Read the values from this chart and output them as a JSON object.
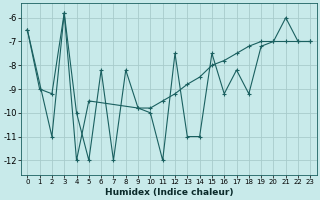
{
  "xlabel": "Humidex (Indice chaleur)",
  "bg_color": "#c8eaea",
  "grid_color": "#a8cccc",
  "line_color": "#1a6060",
  "xlim": [
    -0.5,
    23.5
  ],
  "ylim": [
    -12.6,
    -5.4
  ],
  "yticks": [
    -12,
    -11,
    -10,
    -9,
    -8,
    -7,
    -6
  ],
  "xticks": [
    0,
    1,
    2,
    3,
    4,
    5,
    6,
    7,
    8,
    9,
    10,
    11,
    12,
    13,
    14,
    15,
    16,
    17,
    18,
    19,
    20,
    21,
    22,
    23
  ],
  "curve1_x": [
    0,
    1,
    2,
    3,
    4,
    5,
    6,
    7,
    8,
    9,
    10,
    11,
    12,
    13,
    14,
    15,
    16,
    17,
    18,
    19,
    20,
    21,
    22,
    23
  ],
  "curve1_y": [
    -6.5,
    -9.0,
    -9.2,
    -5.8,
    -10.0,
    -12.0,
    -8.2,
    -12.0,
    -8.2,
    -9.8,
    -10.0,
    -12.0,
    -7.5,
    -11.0,
    -11.0,
    -7.5,
    -9.2,
    -8.2,
    -9.2,
    -7.2,
    -7.0,
    -6.0,
    -7.0,
    -7.0
  ],
  "curve2_x": [
    0,
    2,
    3,
    4,
    5,
    9,
    10,
    11,
    12,
    13,
    14,
    15,
    16,
    17,
    18,
    19,
    20,
    21,
    22,
    23
  ],
  "curve2_y": [
    -6.5,
    -11.0,
    -5.8,
    -12.0,
    -9.5,
    -9.8,
    -9.8,
    -9.5,
    -9.2,
    -8.8,
    -8.5,
    -8.0,
    -7.8,
    -7.5,
    -7.2,
    -7.0,
    -7.0,
    -7.0,
    -7.0,
    -7.0
  ]
}
